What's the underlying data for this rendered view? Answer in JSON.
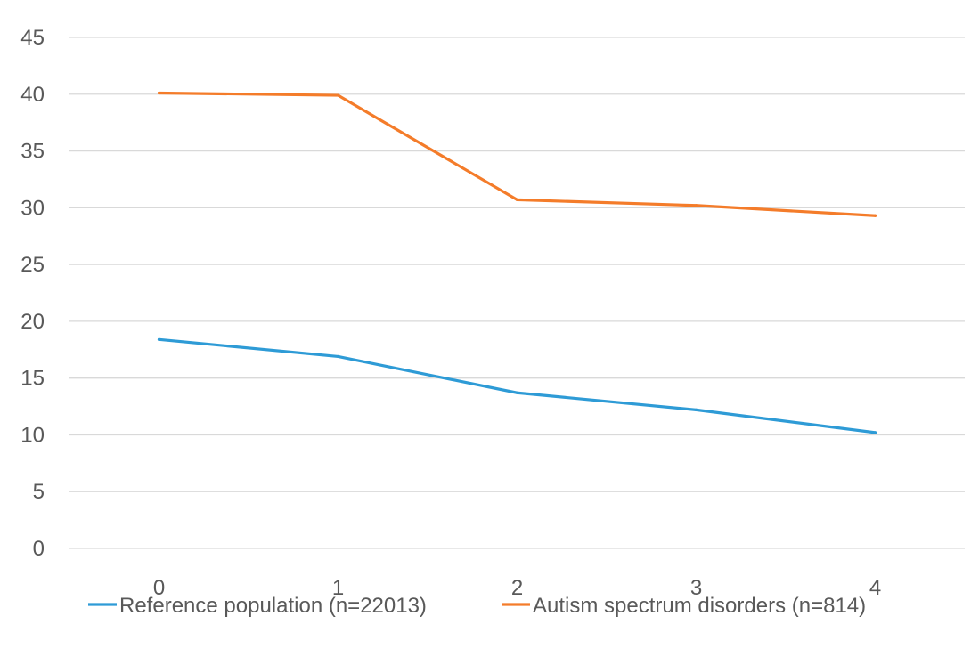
{
  "chart_data": {
    "type": "line",
    "title": "",
    "xlabel": "",
    "ylabel": "",
    "categories": [
      "0",
      "1",
      "2",
      "3",
      "4"
    ],
    "ylim": [
      0,
      45
    ],
    "yticks": [
      0,
      5,
      10,
      15,
      20,
      25,
      30,
      35,
      40,
      45
    ],
    "grid": true,
    "legend_position": "bottom",
    "series": [
      {
        "name": "Reference population (n=22013)",
        "color": "#2e9bd6",
        "values": [
          18.4,
          16.9,
          13.7,
          12.2,
          10.2
        ]
      },
      {
        "name": "Autism spectrum disorders (n=814)",
        "color": "#f47c2a",
        "values": [
          40.1,
          39.9,
          30.7,
          30.2,
          29.3
        ]
      }
    ]
  }
}
